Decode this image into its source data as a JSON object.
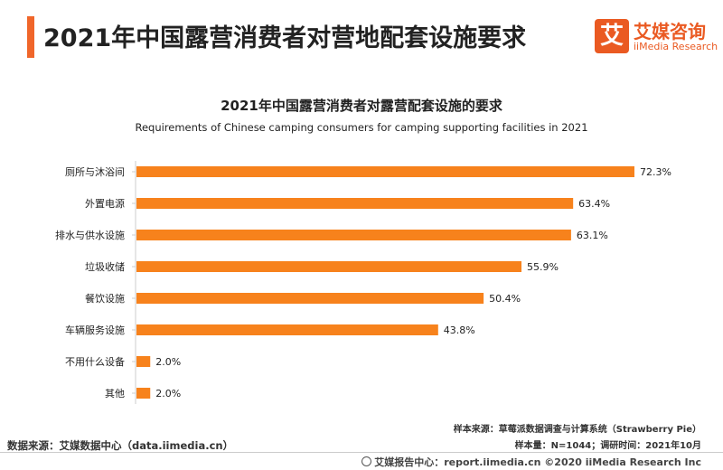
{
  "header": {
    "title": "2021年中国露营消费者对营地配套设施要求",
    "logo_glyph": "艾",
    "logo_cn": "艾媒咨询",
    "logo_en": "iiMedia Research",
    "accent": "#f0662a"
  },
  "chart_data": {
    "type": "bar",
    "orientation": "horizontal",
    "title": "2021年中国露营消费者对露营配套设施的要求",
    "subtitle": "Requirements of Chinese camping consumers for camping supporting facilities in 2021",
    "categories": [
      "厕所与沐浴间",
      "外置电源",
      "排水与供水设施",
      "垃圾收储",
      "餐饮设施",
      "车辆服务设施",
      "不用什么设备",
      "其他"
    ],
    "values": [
      72.3,
      63.4,
      63.1,
      55.9,
      50.4,
      43.8,
      2.0,
      2.0
    ],
    "value_labels": [
      "72.3%",
      "63.4%",
      "63.1%",
      "55.9%",
      "50.4%",
      "43.8%",
      "2.0%",
      "2.0%"
    ],
    "xlim": [
      0,
      72.3
    ],
    "bar_color": "#f7821c",
    "grid": false,
    "legend": "none"
  },
  "footer": {
    "data_source": "数据来源：艾媒数据中心（data.iimedia.cn）",
    "sample_source": "样本来源：草莓派数据调查与计算系统（Strawberry Pie）",
    "sample_size": "样本量：N=1044；调研时间：2021年10月",
    "copyright": "艾媒报告中心：report.iimedia.cn  ©2020  iiMedia Research  Inc"
  }
}
